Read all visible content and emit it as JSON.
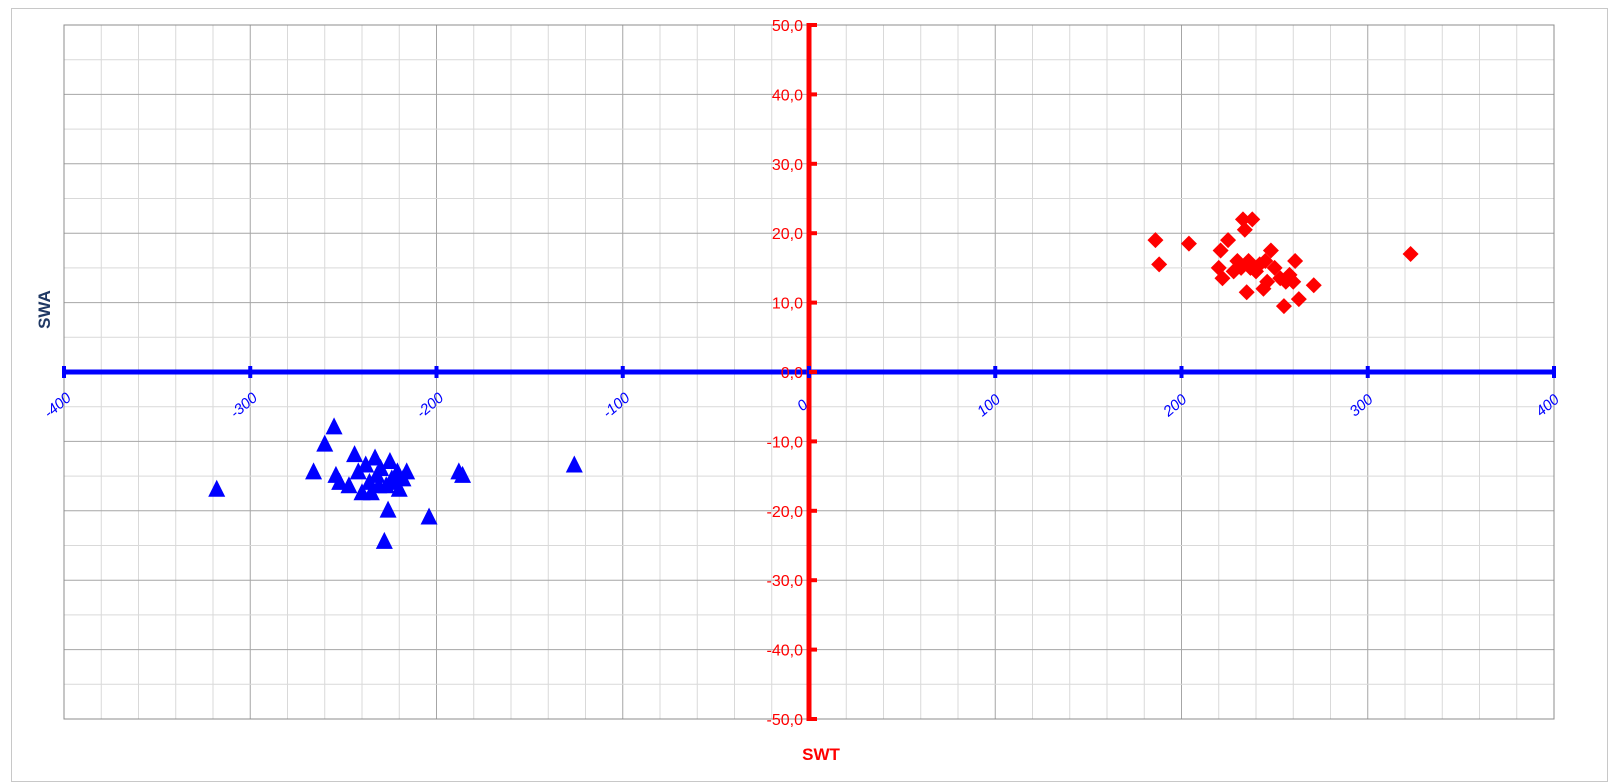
{
  "chart_data": {
    "type": "scatter",
    "xlabel": "SWT",
    "ylabel": "SWA",
    "xlim": [
      -400,
      400
    ],
    "ylim": [
      -50,
      50
    ],
    "x_ticks": [
      "-400",
      "-300",
      "-200",
      "-100",
      "0",
      "100",
      "200",
      "300",
      "400"
    ],
    "y_ticks": [
      "50,0",
      "40,0",
      "30,0",
      "20,0",
      "10,0",
      "0,0",
      "-10,0",
      "-20,0",
      "-30,0",
      "-40,0",
      "-50,0"
    ],
    "grid": true,
    "legend": "none",
    "colors": {
      "x_axis": "#0000ff",
      "y_axis": "#ff0000",
      "grid": "#bfbfbf",
      "ylabel": "#1f3864"
    },
    "series": [
      {
        "marker": "triangle",
        "color": "#0000ff",
        "points": [
          [
            -318,
            -17
          ],
          [
            -266,
            -14.5
          ],
          [
            -260,
            -10.5
          ],
          [
            -255,
            -8
          ],
          [
            -254,
            -15
          ],
          [
            -252,
            -16
          ],
          [
            -247,
            -16.5
          ],
          [
            -244,
            -12
          ],
          [
            -242,
            -14.5
          ],
          [
            -240,
            -17.5
          ],
          [
            -238,
            -13.5
          ],
          [
            -236,
            -16
          ],
          [
            -235,
            -17.5
          ],
          [
            -233,
            -12.5
          ],
          [
            -232,
            -15
          ],
          [
            -231,
            -16.5
          ],
          [
            -230,
            -14
          ],
          [
            -228,
            -24.5
          ],
          [
            -227,
            -16.5
          ],
          [
            -226,
            -20
          ],
          [
            -225,
            -13
          ],
          [
            -224,
            -15.5
          ],
          [
            -222,
            -16
          ],
          [
            -221,
            -14.5
          ],
          [
            -220,
            -17
          ],
          [
            -218,
            -15.5
          ],
          [
            -216,
            -14.5
          ],
          [
            -204,
            -21
          ],
          [
            -188,
            -14.5
          ],
          [
            -186,
            -15
          ],
          [
            -126,
            -13.5
          ]
        ]
      },
      {
        "marker": "diamond",
        "color": "#ff0000",
        "points": [
          [
            186,
            19
          ],
          [
            188,
            15.5
          ],
          [
            204,
            18.5
          ],
          [
            220,
            15
          ],
          [
            221,
            17.5
          ],
          [
            222,
            13.5
          ],
          [
            225,
            19
          ],
          [
            228,
            14.5
          ],
          [
            230,
            16
          ],
          [
            232,
            15
          ],
          [
            233,
            22
          ],
          [
            234,
            20.5
          ],
          [
            235,
            11.5
          ],
          [
            236,
            16
          ],
          [
            237,
            15
          ],
          [
            238,
            22
          ],
          [
            240,
            14.5
          ],
          [
            242,
            15.5
          ],
          [
            244,
            12
          ],
          [
            245,
            16
          ],
          [
            246,
            13
          ],
          [
            248,
            17.5
          ],
          [
            250,
            15
          ],
          [
            253,
            13.5
          ],
          [
            255,
            9.5
          ],
          [
            256,
            13
          ],
          [
            258,
            14
          ],
          [
            260,
            13
          ],
          [
            261,
            16
          ],
          [
            263,
            10.5
          ],
          [
            271,
            12.5
          ],
          [
            323,
            17
          ]
        ]
      }
    ]
  }
}
